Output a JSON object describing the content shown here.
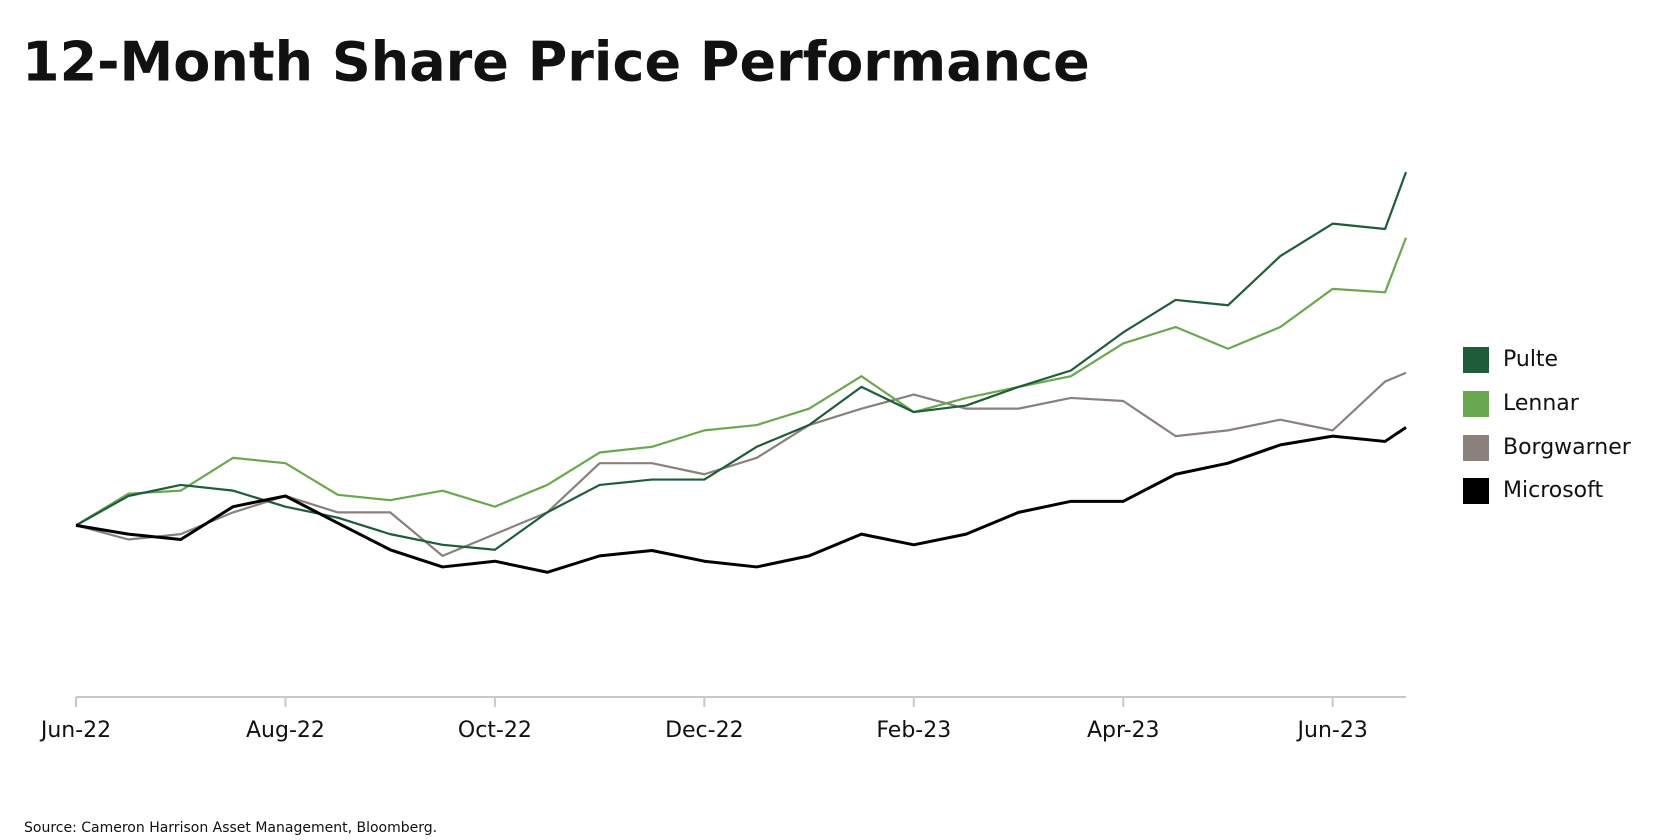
{
  "chart_data": {
    "type": "line",
    "title": "12-Month Share Price Performance",
    "source": "Source: Cameron Harrison Asset Management, Bloomberg.",
    "x": [
      0,
      0.5,
      1,
      1.5,
      2,
      2.5,
      3,
      3.5,
      4,
      4.5,
      5,
      5.5,
      6,
      6.5,
      7,
      7.5,
      8,
      8.5,
      9,
      9.5,
      10,
      10.5,
      11,
      11.5,
      12,
      12.5,
      12.7
    ],
    "xlim": [
      0,
      12.7
    ],
    "xticks": [
      {
        "value": 0,
        "label": "Jun-22"
      },
      {
        "value": 2,
        "label": "Aug-22"
      },
      {
        "value": 4,
        "label": "Oct-22"
      },
      {
        "value": 6,
        "label": "Dec-22"
      },
      {
        "value": 8,
        "label": "Feb-23"
      },
      {
        "value": 10,
        "label": "Apr-23"
      },
      {
        "value": 12,
        "label": "Jun-23"
      }
    ],
    "ylim": [
      55,
      195
    ],
    "legend": "right",
    "series": [
      {
        "name": "Pulte",
        "color": "#1f5c3a",
        "values": [
          100,
          107.7,
          110.6,
          109.1,
          104.9,
          102,
          97.7,
          94.9,
          93.6,
          103.4,
          110.6,
          112,
          112,
          120.6,
          126.3,
          136.3,
          129.7,
          131.4,
          136.3,
          140.6,
          150.6,
          159.1,
          157.7,
          170.6,
          179.1,
          177.7,
          192.6
        ]
      },
      {
        "name": "Lennar",
        "color": "#6aa84f",
        "values": [
          100,
          108.3,
          109.1,
          117.7,
          116.3,
          108,
          106.6,
          109.1,
          104.9,
          110.6,
          119.1,
          120.6,
          124.9,
          126.3,
          130.6,
          139.1,
          129.7,
          133.4,
          136.3,
          139.1,
          147.7,
          152,
          146.3,
          152,
          162,
          161.1,
          175.4
        ]
      },
      {
        "name": "Borgwarner",
        "color": "#8a817c",
        "values": [
          100,
          96.3,
          97.7,
          103.4,
          107.7,
          103.4,
          103.4,
          92,
          97.7,
          103.4,
          116.3,
          116.3,
          113.4,
          117.7,
          126.3,
          130.6,
          134.3,
          130.6,
          130.6,
          133.4,
          132.6,
          123.4,
          124.9,
          127.7,
          124.9,
          137.7,
          140
        ]
      },
      {
        "name": "Microsoft",
        "color": "#000000",
        "values": [
          100,
          97.7,
          96.3,
          104.9,
          107.7,
          100.6,
          93.6,
          89.1,
          90.6,
          87.7,
          92,
          93.4,
          90.6,
          89.1,
          92,
          97.7,
          94.9,
          97.7,
          103.4,
          106.3,
          106.3,
          113.4,
          116.3,
          121.1,
          123.4,
          122,
          125.7
        ]
      }
    ]
  }
}
